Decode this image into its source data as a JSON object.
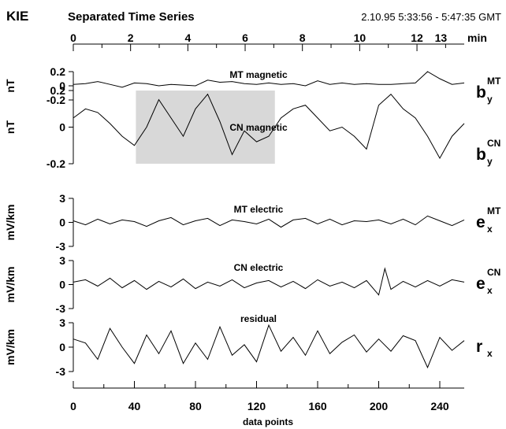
{
  "header": {
    "station": "KIE",
    "title": "Separated Time Series",
    "time_range": "2.10.95 5:33:56 - 5:47:35 GMT"
  },
  "chart_data": {
    "type": "line",
    "top_axis": {
      "label": "min",
      "range": [
        0,
        13.65
      ],
      "ticks": [
        0,
        2,
        4,
        6,
        8,
        10,
        12,
        13
      ],
      "tick_labels": [
        "0",
        "2",
        "4",
        "6",
        "8",
        "10",
        "12",
        "13"
      ]
    },
    "bottom_axis": {
      "label": "data points",
      "range": [
        0,
        256
      ],
      "ticks": [
        0,
        40,
        80,
        120,
        160,
        200,
        240
      ],
      "tick_labels": [
        "0",
        "40",
        "80",
        "120",
        "160",
        "200",
        "240"
      ]
    },
    "highlight": {
      "x_range": [
        41,
        132
      ],
      "panel": 1,
      "color": "#d8d8d8"
    },
    "panels": [
      {
        "title": "MT magnetic",
        "unit": "nT",
        "symbol": "b",
        "sup": "MT",
        "sub": "y",
        "ylim": [
          -0.2,
          0.2
        ],
        "ticks": [
          -0.2,
          0,
          0.2
        ],
        "tick_labels": [
          "-0.2",
          "0",
          "0.2"
        ],
        "x": [
          0,
          8,
          16,
          24,
          32,
          40,
          48,
          56,
          64,
          72,
          80,
          88,
          96,
          104,
          112,
          120,
          128,
          136,
          144,
          152,
          160,
          168,
          176,
          184,
          192,
          200,
          208,
          216,
          224,
          232,
          240,
          248,
          256
        ],
        "values": [
          0.02,
          0.03,
          0.06,
          0.02,
          -0.02,
          0.04,
          0.03,
          0.0,
          0.02,
          0.01,
          0.0,
          0.08,
          0.05,
          0.06,
          0.03,
          0.02,
          0.04,
          0.02,
          0.03,
          0.0,
          0.07,
          0.02,
          0.04,
          0.02,
          0.03,
          0.02,
          0.02,
          0.03,
          0.04,
          0.2,
          0.1,
          0.02,
          0.04
        ]
      },
      {
        "title": "CN magnetic",
        "unit": "nT",
        "symbol": "b",
        "sup": "CN",
        "sub": "y",
        "ylim": [
          -0.2,
          0.2
        ],
        "ticks": [
          -0.2,
          0,
          0.2
        ],
        "tick_labels": [
          "-0.2",
          "0",
          "0.2"
        ],
        "x": [
          0,
          8,
          16,
          24,
          32,
          40,
          48,
          56,
          64,
          72,
          80,
          88,
          96,
          104,
          112,
          120,
          128,
          136,
          144,
          152,
          160,
          168,
          176,
          184,
          192,
          200,
          208,
          216,
          224,
          232,
          240,
          248,
          256
        ],
        "values": [
          0.05,
          0.1,
          0.08,
          0.02,
          -0.05,
          -0.1,
          0.0,
          0.15,
          0.05,
          -0.05,
          0.1,
          0.18,
          0.03,
          -0.15,
          -0.02,
          -0.08,
          -0.05,
          0.05,
          0.1,
          0.12,
          0.05,
          -0.02,
          0.0,
          -0.05,
          -0.12,
          0.12,
          0.18,
          0.1,
          0.05,
          -0.05,
          -0.17,
          -0.05,
          0.02
        ]
      },
      {
        "title": "MT electric",
        "unit": "mV/km",
        "symbol": "e",
        "sup": "MT",
        "sub": "x",
        "ylim": [
          -3,
          3
        ],
        "ticks": [
          -3,
          0,
          3
        ],
        "tick_labels": [
          "-3",
          "0",
          "3"
        ],
        "x": [
          0,
          8,
          16,
          24,
          32,
          40,
          48,
          56,
          64,
          72,
          80,
          88,
          96,
          104,
          112,
          120,
          128,
          136,
          144,
          152,
          160,
          168,
          176,
          184,
          192,
          200,
          208,
          216,
          224,
          232,
          240,
          248,
          256
        ],
        "values": [
          0.2,
          -0.3,
          0.4,
          -0.2,
          0.3,
          0.1,
          -0.5,
          0.2,
          0.6,
          -0.3,
          0.2,
          0.5,
          -0.4,
          0.3,
          0.1,
          -0.2,
          0.4,
          -0.6,
          0.3,
          0.5,
          -0.2,
          0.4,
          -0.3,
          0.2,
          0.1,
          0.3,
          -0.2,
          0.4,
          -0.3,
          0.8,
          0.2,
          -0.4,
          0.3
        ]
      },
      {
        "title": "CN electric",
        "unit": "mV/km",
        "symbol": "e",
        "sup": "CN",
        "sub": "x",
        "ylim": [
          -3,
          3
        ],
        "ticks": [
          -3,
          0,
          3
        ],
        "tick_labels": [
          "-3",
          "0",
          "3"
        ],
        "x": [
          0,
          8,
          16,
          24,
          32,
          40,
          48,
          56,
          64,
          72,
          80,
          88,
          96,
          104,
          112,
          120,
          128,
          136,
          144,
          152,
          160,
          168,
          176,
          184,
          192,
          200,
          204,
          208,
          216,
          224,
          232,
          240,
          248,
          256
        ],
        "values": [
          0.3,
          0.6,
          -0.2,
          0.8,
          -0.4,
          0.5,
          -0.6,
          0.4,
          -0.3,
          0.7,
          -0.5,
          0.3,
          -0.2,
          0.6,
          -0.4,
          0.2,
          0.5,
          -0.3,
          0.4,
          -0.5,
          0.6,
          -0.2,
          0.3,
          -0.4,
          0.5,
          -1.3,
          2.0,
          -0.6,
          0.4,
          -0.3,
          0.5,
          -0.2,
          0.6,
          0.3
        ]
      },
      {
        "title": "residual",
        "unit": "mV/km",
        "symbol": "r",
        "sup": "",
        "sub": "x",
        "ylim": [
          -3,
          3
        ],
        "ticks": [
          -3,
          0,
          3
        ],
        "tick_labels": [
          "-3",
          "0",
          "3"
        ],
        "x": [
          0,
          8,
          16,
          24,
          32,
          40,
          48,
          56,
          64,
          72,
          80,
          88,
          96,
          104,
          112,
          120,
          128,
          136,
          144,
          152,
          160,
          168,
          176,
          184,
          192,
          200,
          208,
          216,
          224,
          232,
          240,
          248,
          256
        ],
        "values": [
          1.0,
          0.5,
          -1.5,
          2.3,
          0.0,
          -2.0,
          1.5,
          -0.8,
          2.0,
          -2.0,
          0.5,
          -1.5,
          2.5,
          -1.0,
          0.3,
          -1.8,
          2.7,
          -0.5,
          1.2,
          -1.0,
          2.0,
          -0.8,
          0.6,
          1.5,
          -0.6,
          1.0,
          -0.5,
          1.4,
          0.8,
          -2.5,
          1.2,
          -0.4,
          0.8
        ]
      }
    ]
  }
}
